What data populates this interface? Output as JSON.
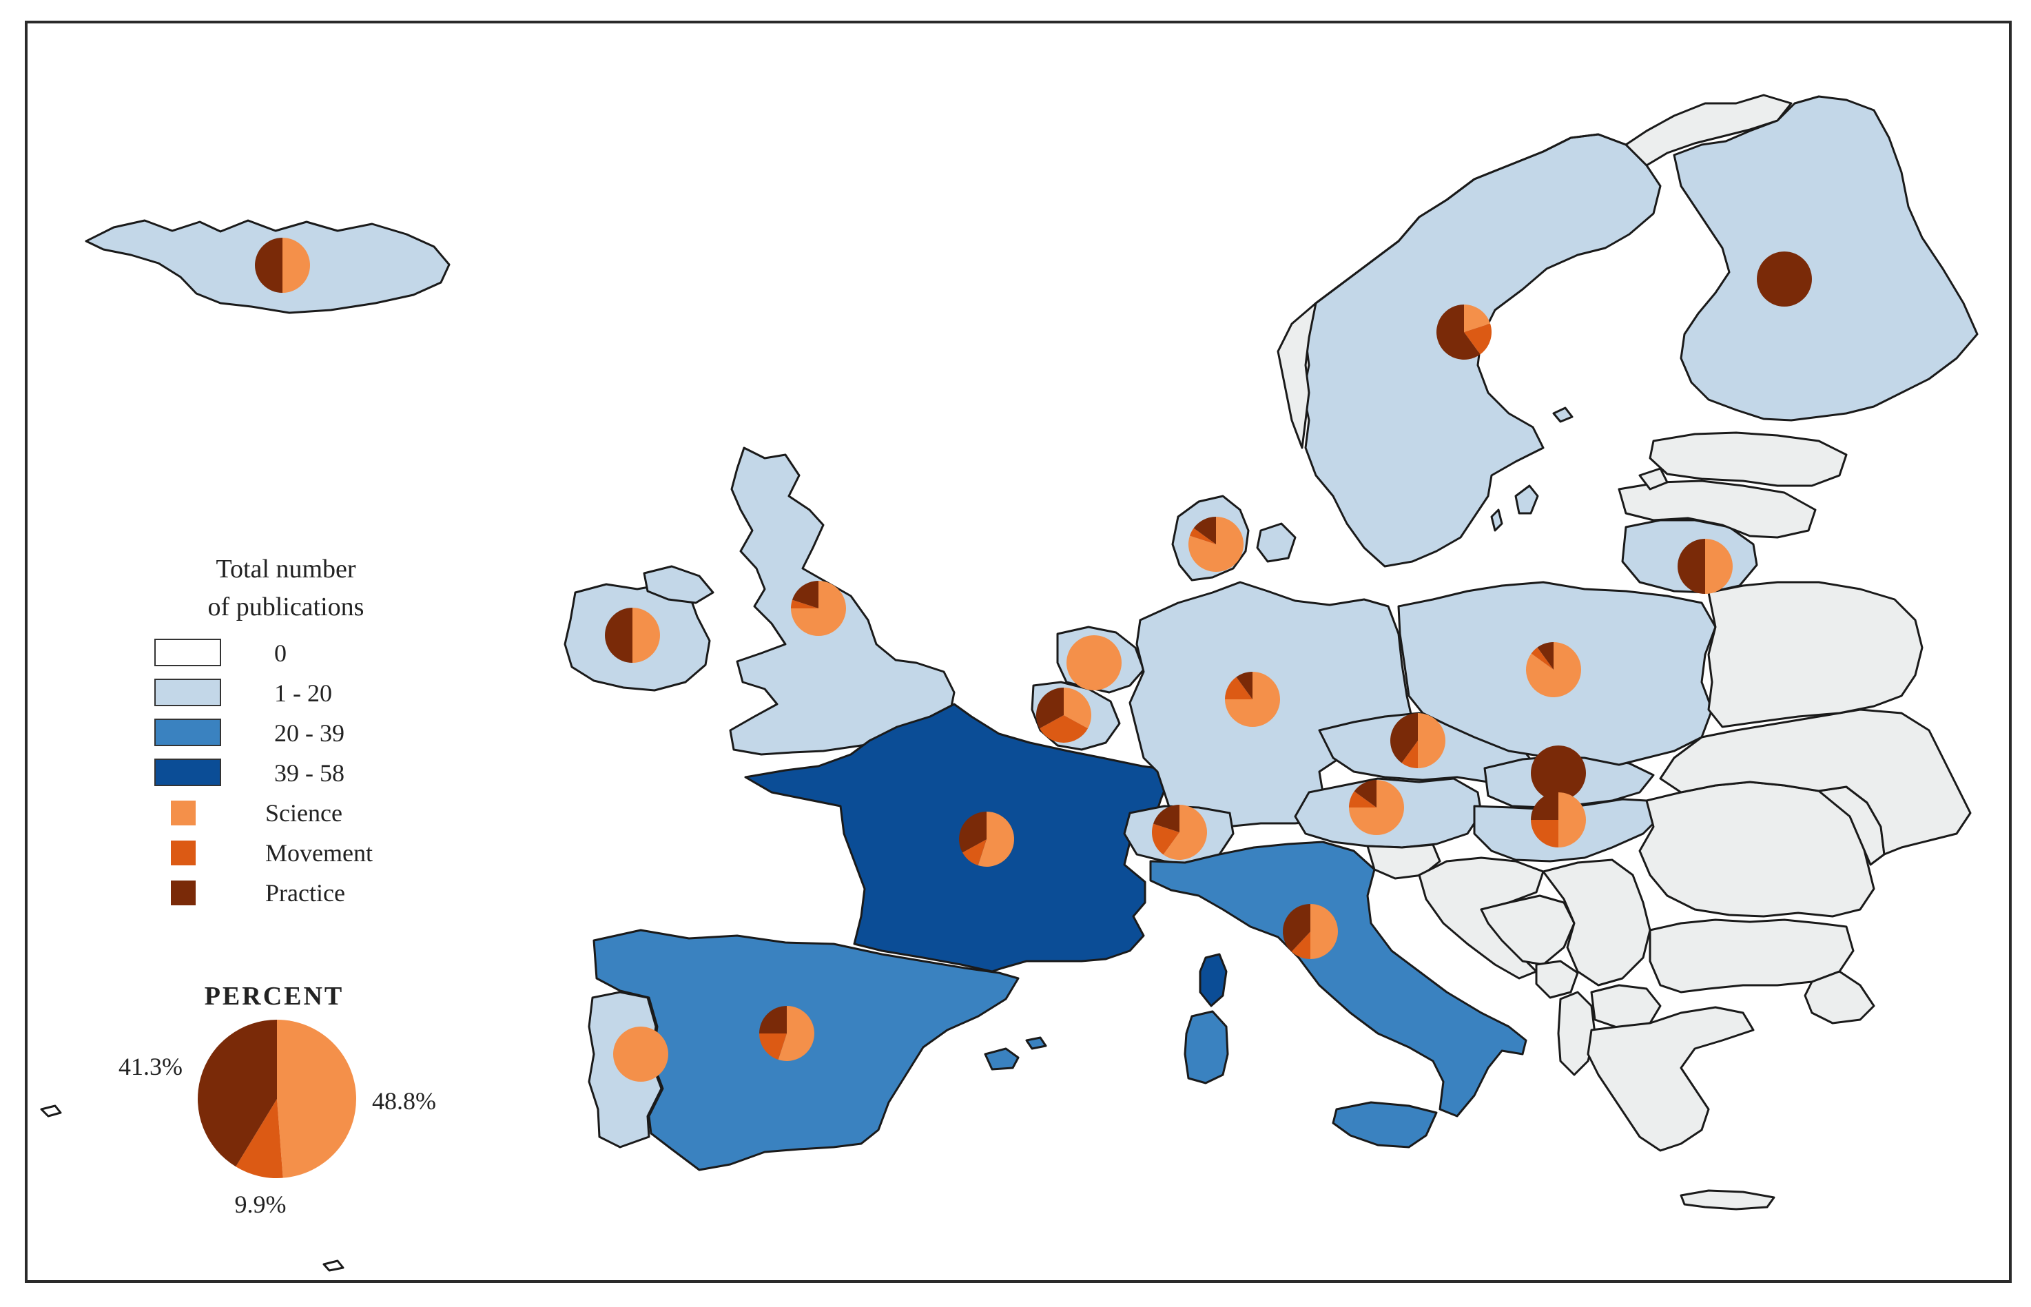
{
  "legend": {
    "title_line1": "Total number",
    "title_line2": "of publications",
    "classes": [
      {
        "label": "0",
        "color": "#ffffff"
      },
      {
        "label": "1 - 20",
        "color": "#c3d7e8"
      },
      {
        "label": "20 - 39",
        "color": "#3a82c0"
      },
      {
        "label": "39 - 58",
        "color": "#0b4d96"
      }
    ],
    "categories": [
      {
        "label": "Science",
        "color": "#f4904a"
      },
      {
        "label": "Movement",
        "color": "#dc5a14"
      },
      {
        "label": "Practice",
        "color": "#7a2a08"
      }
    ]
  },
  "percent_chart": {
    "title": "PERCENT",
    "slices": [
      {
        "category": "Science",
        "value": 48.8,
        "label": "48.8%"
      },
      {
        "category": "Movement",
        "value": 9.9,
        "label": "9.9%"
      },
      {
        "category": "Practice",
        "value": 41.3,
        "label": "41.3%"
      }
    ]
  },
  "colors": {
    "no_data": "#eceeee",
    "border": "#1a1a1a"
  },
  "map_icons": [
    "country-pie-chart"
  ]
}
